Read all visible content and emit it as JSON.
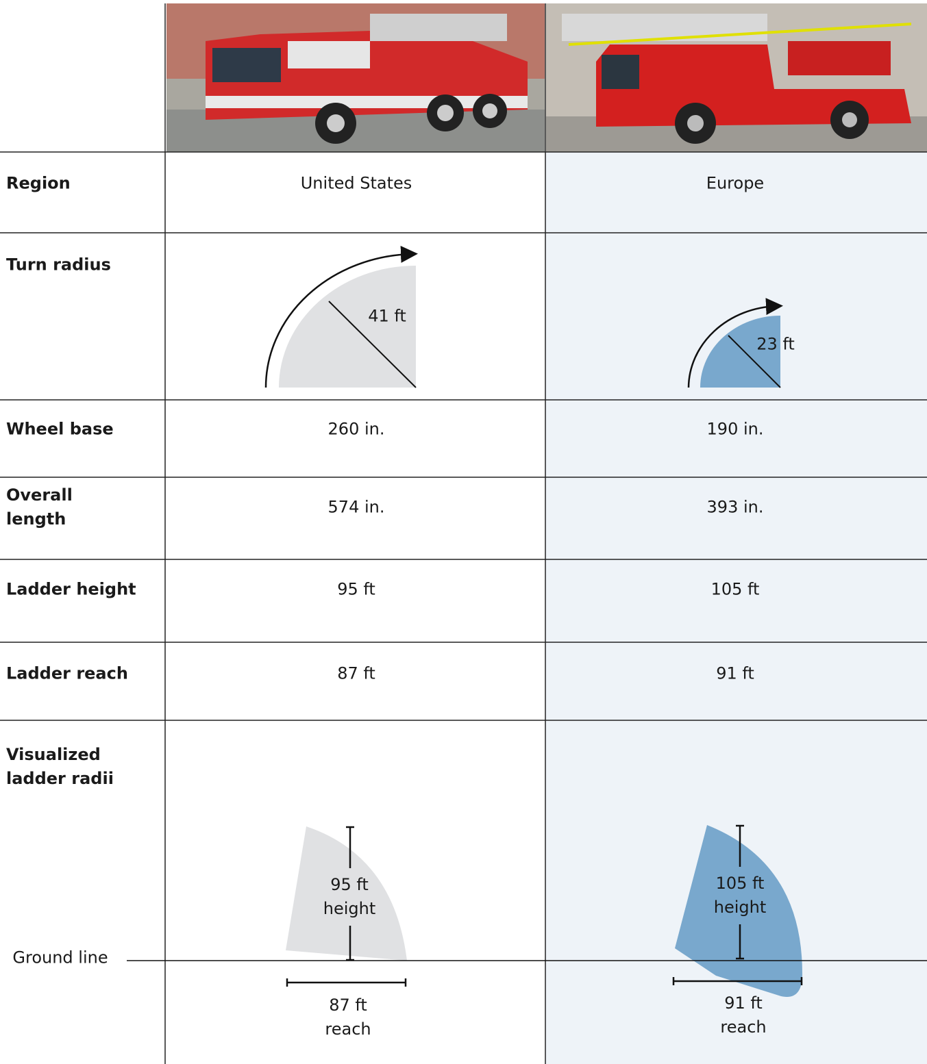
{
  "table": {
    "rows": [
      [
        "Region",
        "United States",
        "Europe"
      ],
      [
        "Turn radius",
        "41 ft",
        "23 ft"
      ],
      [
        "Wheel base",
        "260 in.",
        "190 in."
      ],
      [
        "Overall length",
        "574 in.",
        "393 in."
      ],
      [
        "Ladder height",
        "95 ft",
        "105 ft"
      ],
      [
        "Ladder reach",
        "87 ft",
        "91 ft"
      ],
      [
        "Visualized ladder radii"
      ]
    ]
  },
  "ladder_diagram": {
    "ground_line": "Ground line",
    "columns": [
      {
        "height": "95 ft height",
        "reach": "87 ft reach"
      },
      {
        "height": "105 ft height",
        "reach": "91 ft reach"
      }
    ]
  }
}
